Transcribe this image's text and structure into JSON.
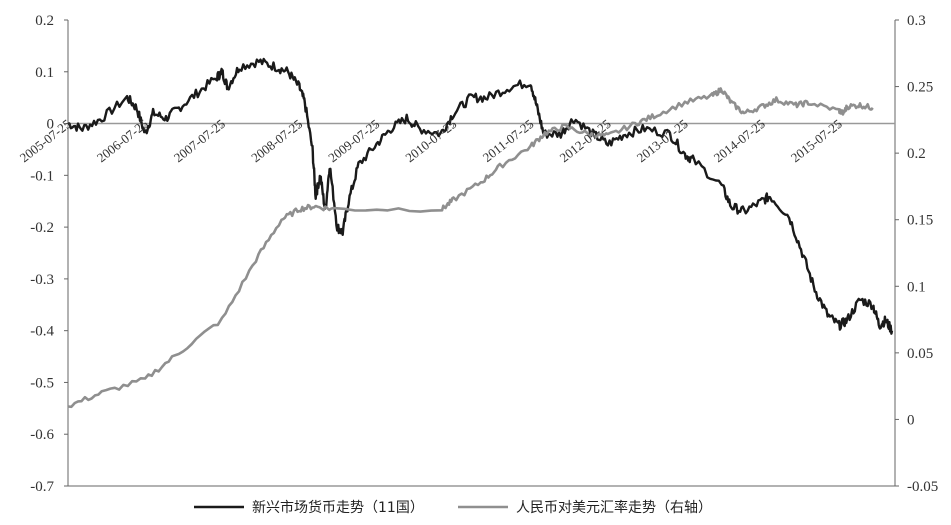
{
  "chart_data": {
    "type": "line",
    "x_dates": [
      "2005-07-25",
      "2006-07-25",
      "2007-07-25",
      "2008-07-25",
      "2009-07-25",
      "2010-07-25",
      "2011-07-25",
      "2012-07-25",
      "2013-07-25",
      "2014-07-25",
      "2015-07-25"
    ],
    "x_date_labels_visible": [
      "2005-07-25",
      "2006-07-25",
      "2007-07-25",
      "2008-07-25",
      "2009-07-25",
      "2010-07-25",
      "2011-07-25",
      "2012-07-25",
      "2013-07-25",
      "2014-07-25",
      "2015-07-25"
    ],
    "x_range": [
      "2005-07-25",
      "2016-04-15"
    ],
    "y_left": {
      "ylim": [
        -0.7,
        0.2
      ],
      "ticks": [
        0.2,
        0.1,
        0,
        -0.1,
        -0.2,
        -0.3,
        -0.4,
        -0.5,
        -0.6,
        -0.7
      ],
      "tick_labels": [
        "0.2",
        "0.1",
        "0",
        "-0.1",
        "-0.2",
        "-0.3",
        "-0.4",
        "-0.5",
        "-0.6",
        "-0.7"
      ]
    },
    "y_right": {
      "ylim": [
        -0.05,
        0.3
      ],
      "ticks": [
        0.3,
        0.25,
        0.2,
        0.15,
        0.1,
        0.05,
        0,
        -0.05
      ],
      "tick_labels": [
        "0.3",
        "0.25",
        "0.2",
        "0.15",
        "0.1",
        "0.05",
        "0",
        "-0.05"
      ]
    },
    "grid": false,
    "legend": "bottom",
    "series": [
      {
        "name": "新兴市场货币走势（11国）",
        "axis": "left",
        "color": "#1a1a1a",
        "points": [
          [
            "2005-07-25",
            0.0
          ],
          [
            "2005-10-01",
            -0.01
          ],
          [
            "2006-01-01",
            0.01
          ],
          [
            "2006-05-01",
            0.05
          ],
          [
            "2006-06-15",
            0.03
          ],
          [
            "2006-07-25",
            -0.02
          ],
          [
            "2006-09-01",
            0.02
          ],
          [
            "2006-11-01",
            0.01
          ],
          [
            "2007-01-01",
            0.03
          ],
          [
            "2007-04-01",
            0.06
          ],
          [
            "2007-07-01",
            0.09
          ],
          [
            "2007-07-25",
            0.1
          ],
          [
            "2007-08-20",
            0.07
          ],
          [
            "2007-10-15",
            0.11
          ],
          [
            "2008-01-15",
            0.12
          ],
          [
            "2008-04-01",
            0.11
          ],
          [
            "2008-06-01",
            0.1
          ],
          [
            "2008-07-25",
            0.07
          ],
          [
            "2008-08-20",
            0.04
          ],
          [
            "2008-09-25",
            -0.05
          ],
          [
            "2008-10-10",
            -0.14
          ],
          [
            "2008-11-01",
            -0.1
          ],
          [
            "2008-11-25",
            -0.17
          ],
          [
            "2008-12-15",
            -0.08
          ],
          [
            "2009-01-20",
            -0.2
          ],
          [
            "2009-02-15",
            -0.21
          ],
          [
            "2009-03-15",
            -0.15
          ],
          [
            "2009-05-01",
            -0.08
          ],
          [
            "2009-07-25",
            -0.04
          ],
          [
            "2009-10-01",
            -0.01
          ],
          [
            "2009-12-15",
            0.01
          ],
          [
            "2010-02-15",
            -0.01
          ],
          [
            "2010-05-25",
            -0.02
          ],
          [
            "2010-07-25",
            0.02
          ],
          [
            "2010-10-15",
            0.05
          ],
          [
            "2011-01-01",
            0.05
          ],
          [
            "2011-04-15",
            0.07
          ],
          [
            "2011-07-25",
            0.08
          ],
          [
            "2011-08-25",
            0.03
          ],
          [
            "2011-09-25",
            -0.02
          ],
          [
            "2011-12-15",
            -0.02
          ],
          [
            "2012-02-15",
            0.01
          ],
          [
            "2012-05-15",
            -0.02
          ],
          [
            "2012-07-25",
            -0.04
          ],
          [
            "2012-10-15",
            -0.02
          ],
          [
            "2013-01-15",
            -0.01
          ],
          [
            "2013-05-15",
            -0.02
          ],
          [
            "2013-07-25",
            -0.06
          ],
          [
            "2013-09-01",
            -0.07
          ],
          [
            "2014-01-15",
            -0.12
          ],
          [
            "2014-03-01",
            -0.16
          ],
          [
            "2014-05-01",
            -0.17
          ],
          [
            "2014-07-25",
            -0.15
          ],
          [
            "2014-09-01",
            -0.14
          ],
          [
            "2014-12-01",
            -0.18
          ],
          [
            "2015-02-01",
            -0.25
          ],
          [
            "2015-04-01",
            -0.32
          ],
          [
            "2015-06-01",
            -0.37
          ],
          [
            "2015-07-25",
            -0.39
          ],
          [
            "2015-09-01",
            -0.38
          ],
          [
            "2015-11-01",
            -0.34
          ],
          [
            "2016-01-01",
            -0.35
          ],
          [
            "2016-02-01",
            -0.39
          ],
          [
            "2016-03-01",
            -0.38
          ],
          [
            "2016-04-01",
            -0.4
          ]
        ]
      },
      {
        "name": "人民币对美元汇率走势（右轴）",
        "axis": "right",
        "color": "#8f8f8f",
        "points": [
          [
            "2005-07-25",
            0.01
          ],
          [
            "2006-01-01",
            0.02
          ],
          [
            "2006-07-25",
            0.03
          ],
          [
            "2007-01-01",
            0.05
          ],
          [
            "2007-07-25",
            0.075
          ],
          [
            "2008-01-01",
            0.12
          ],
          [
            "2008-05-01",
            0.15
          ],
          [
            "2008-07-25",
            0.158
          ],
          [
            "2008-10-01",
            0.16
          ],
          [
            "2009-01-01",
            0.158
          ],
          [
            "2010-06-01",
            0.158
          ],
          [
            "2010-07-25",
            0.165
          ],
          [
            "2010-12-01",
            0.178
          ],
          [
            "2011-03-01",
            0.19
          ],
          [
            "2011-07-25",
            0.205
          ],
          [
            "2011-10-01",
            0.215
          ],
          [
            "2012-01-01",
            0.22
          ],
          [
            "2012-05-01",
            0.214
          ],
          [
            "2012-07-25",
            0.213
          ],
          [
            "2012-12-01",
            0.222
          ],
          [
            "2013-03-01",
            0.228
          ],
          [
            "2013-07-25",
            0.238
          ],
          [
            "2013-12-01",
            0.243
          ],
          [
            "2014-01-15",
            0.248
          ],
          [
            "2014-03-01",
            0.238
          ],
          [
            "2014-05-01",
            0.23
          ],
          [
            "2014-07-25",
            0.235
          ],
          [
            "2014-10-01",
            0.24
          ],
          [
            "2015-01-01",
            0.236
          ],
          [
            "2015-03-01",
            0.238
          ],
          [
            "2015-07-25",
            0.232
          ],
          [
            "2015-08-15",
            0.23
          ],
          [
            "2015-09-01",
            0.235
          ],
          [
            "2015-11-01",
            0.236
          ],
          [
            "2016-01-01",
            0.234
          ]
        ]
      }
    ]
  }
}
